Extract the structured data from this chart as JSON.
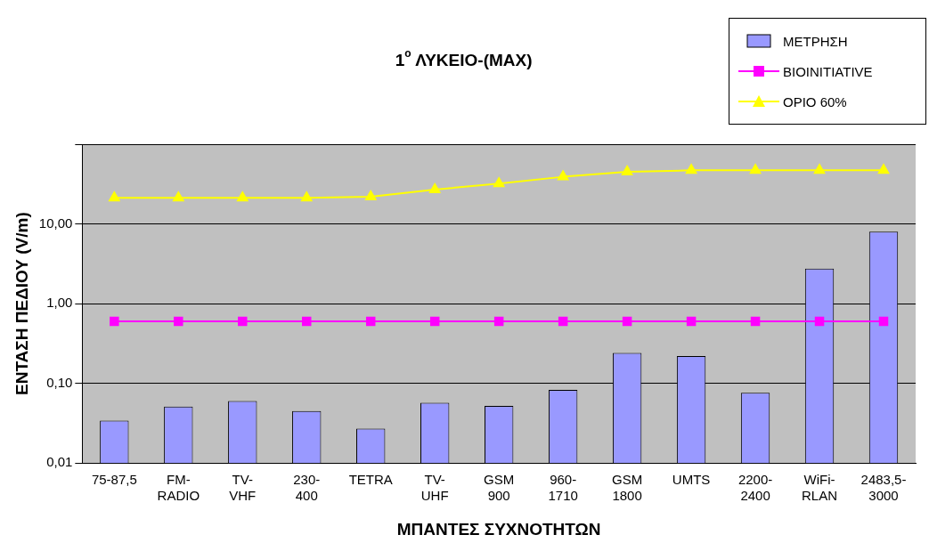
{
  "chart_data": {
    "type": "bar",
    "title": "1$^{ο}$ ΛΥΚΕΙΟ-(MAX)",
    "xlabel": "ΜΠΑΝΤΕΣ ΣΥΧΝΟΤΗΤΩΝ",
    "ylabel": "ΕΝΤΑΣΗ ΠΕΔΙΟΥ (V/m)",
    "categories": [
      "75-87,5",
      "FM-\nRADIO",
      "TV-\nVHF",
      "230-\n400",
      "TETRA",
      "TV-\nUHF",
      "GSM\n900",
      "960-\n1710",
      "GSM\n1800",
      "UMTS",
      "2200-\n2400",
      "WiFi-\nRLAN",
      "2483,5-\n3000"
    ],
    "series": [
      {
        "name": "ΜΕΤΡΗΣΗ",
        "type": "bar",
        "color": "#9999ff",
        "values": [
          0.034,
          0.051,
          0.06,
          0.045,
          0.027,
          0.057,
          0.052,
          0.083,
          0.24,
          0.22,
          0.076,
          2.75,
          8.0
        ]
      },
      {
        "name": "BIOINITIATIVE",
        "type": "line",
        "color": "#ff00ff",
        "marker": "square",
        "values": [
          0.6,
          0.6,
          0.6,
          0.6,
          0.6,
          0.6,
          0.6,
          0.6,
          0.6,
          0.6,
          0.6,
          0.6,
          0.6
        ]
      },
      {
        "name": "ΟΡΙΟ 60%",
        "type": "line",
        "color": "#ffff00",
        "marker": "triangle",
        "values": [
          21.3,
          21.3,
          21.3,
          21.3,
          22,
          27,
          32,
          39,
          45,
          47,
          47,
          47,
          47
        ]
      }
    ],
    "log": "y",
    "ylim": [
      0.01,
      100
    ],
    "yticks": [
      {
        "value": 0.01,
        "label": "0,01"
      },
      {
        "value": 0.1,
        "label": "0,10"
      },
      {
        "value": 1,
        "label": "1,00"
      },
      {
        "value": 10,
        "label": "10,00"
      },
      {
        "value": 100,
        "label": null
      }
    ],
    "grid": "y",
    "legend": "top right"
  }
}
